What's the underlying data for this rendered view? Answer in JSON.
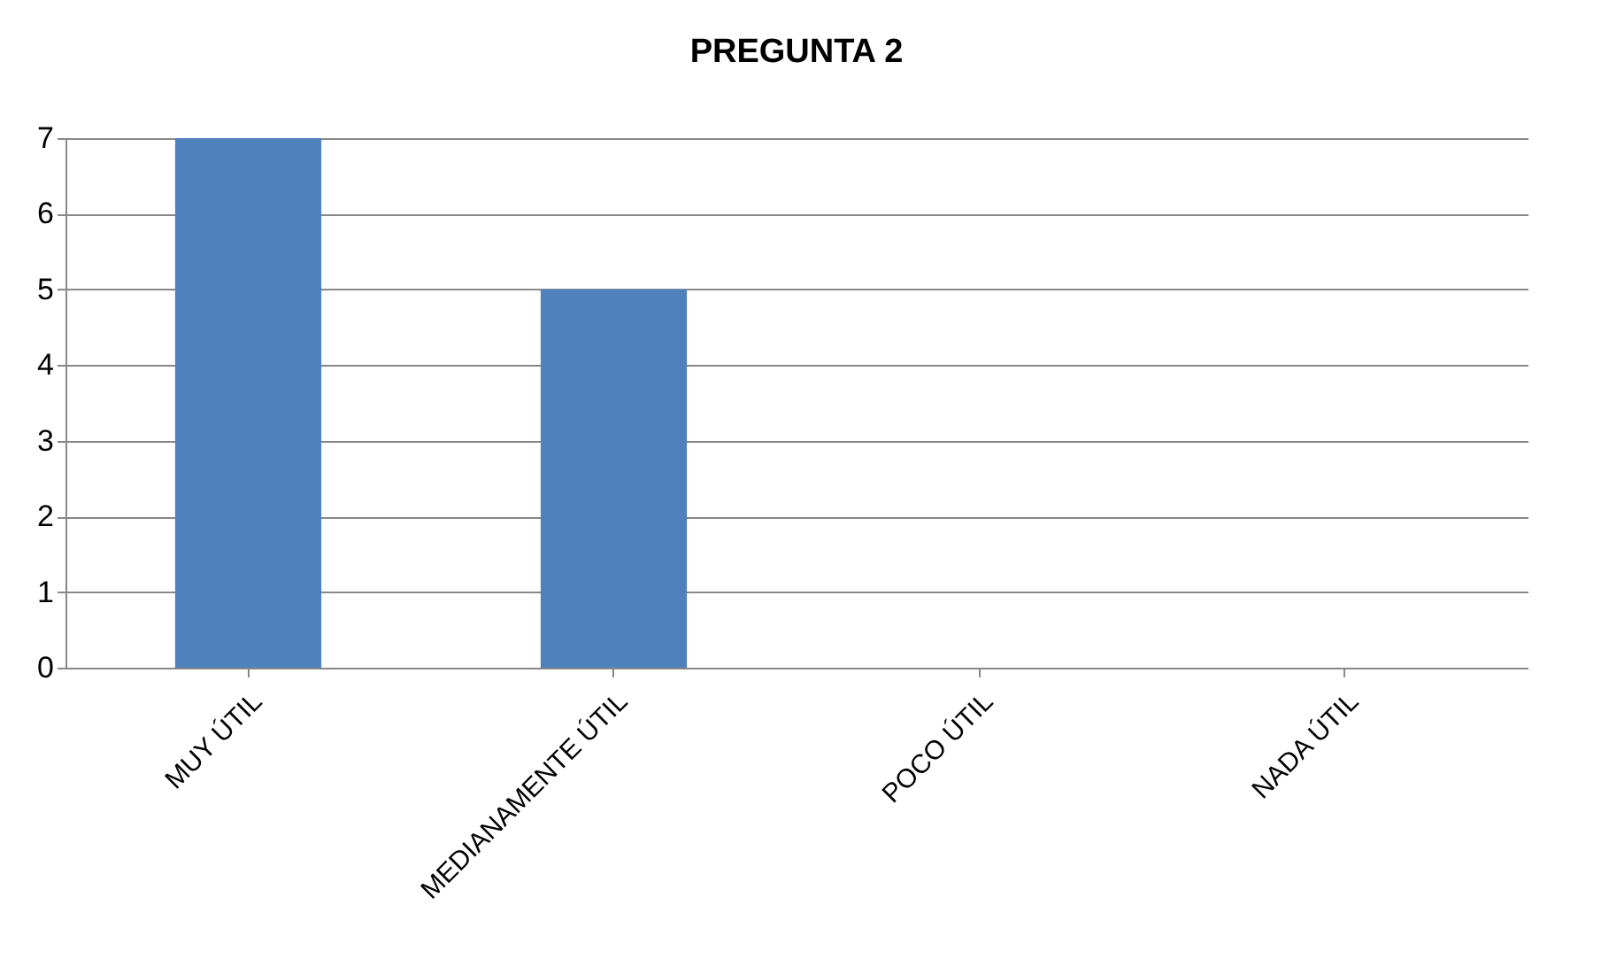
{
  "chart_data": {
    "type": "bar",
    "title": "PREGUNTA 2",
    "categories": [
      "MUY ÚTIL",
      "MEDIANAMENTE ÚTIL",
      "POCO ÚTIL",
      "NADA ÚTIL"
    ],
    "series": [
      {
        "color": "#4f81bd",
        "values": [
          7,
          5,
          0,
          0
        ]
      }
    ],
    "ylim": [
      0,
      7
    ],
    "yticks": [
      0,
      1,
      2,
      3,
      4,
      5,
      6,
      7
    ],
    "grid": "y"
  }
}
